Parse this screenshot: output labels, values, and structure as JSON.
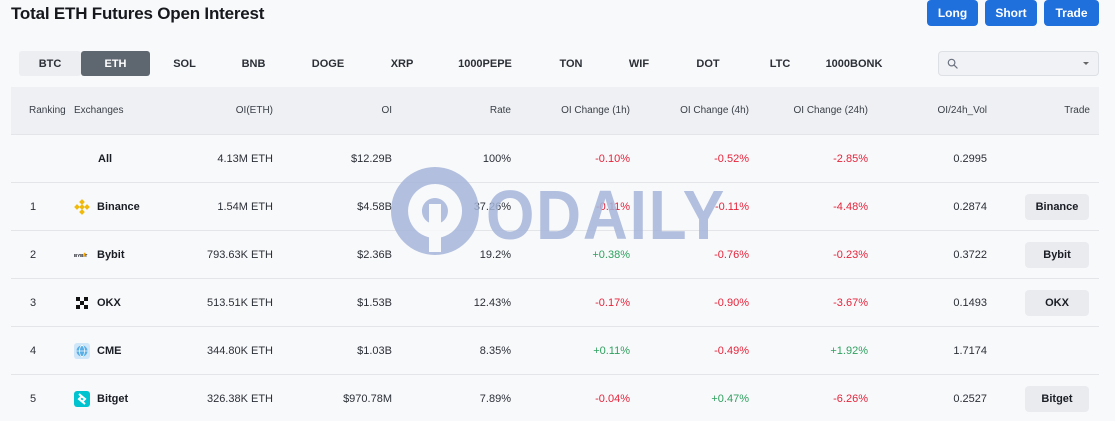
{
  "header": {
    "title": "Total ETH Futures Open Interest",
    "buttons": {
      "long": "Long",
      "short": "Short",
      "trade": "Trade"
    }
  },
  "tabs": [
    "BTC",
    "ETH",
    "SOL",
    "BNB",
    "DOGE",
    "XRP",
    "1000PEPE",
    "TON",
    "WIF",
    "DOT",
    "LTC",
    "1000BONK"
  ],
  "active_tab": "ETH",
  "search": {
    "placeholder": "",
    "value": ""
  },
  "table": {
    "columns": {
      "ranking": "Ranking",
      "exchanges": "Exchanges",
      "oi_eth": "OI(ETH)",
      "oi": "OI",
      "rate": "Rate",
      "oi_change_1h": "OI Change (1h)",
      "oi_change_4h": "OI Change (4h)",
      "oi_change_24h": "OI Change (24h)",
      "oi_vol": "OI/24h_Vol",
      "trade": "Trade"
    },
    "rows": [
      {
        "rank": "",
        "exchange": "All",
        "oi_eth": "4.13M ETH",
        "oi": "$12.29B",
        "rate": "100%",
        "ch1h": "-0.10%",
        "ch4h": "-0.52%",
        "ch24h": "-2.85%",
        "vol": "0.2995",
        "trade": ""
      },
      {
        "rank": "1",
        "exchange": "Binance",
        "oi_eth": "1.54M ETH",
        "oi": "$4.58B",
        "rate": "37.26%",
        "ch1h": "-0.11%",
        "ch4h": "-0.11%",
        "ch24h": "-4.48%",
        "vol": "0.2874",
        "trade": "Binance"
      },
      {
        "rank": "2",
        "exchange": "Bybit",
        "oi_eth": "793.63K ETH",
        "oi": "$2.36B",
        "rate": "19.2%",
        "ch1h": "+0.38%",
        "ch4h": "-0.76%",
        "ch24h": "-0.23%",
        "vol": "0.3722",
        "trade": "Bybit"
      },
      {
        "rank": "3",
        "exchange": "OKX",
        "oi_eth": "513.51K ETH",
        "oi": "$1.53B",
        "rate": "12.43%",
        "ch1h": "-0.17%",
        "ch4h": "-0.90%",
        "ch24h": "-3.67%",
        "vol": "0.1493",
        "trade": "OKX"
      },
      {
        "rank": "4",
        "exchange": "CME",
        "oi_eth": "344.80K ETH",
        "oi": "$1.03B",
        "rate": "8.35%",
        "ch1h": "+0.11%",
        "ch4h": "-0.49%",
        "ch24h": "+1.92%",
        "vol": "1.7174",
        "trade": ""
      },
      {
        "rank": "5",
        "exchange": "Bitget",
        "oi_eth": "326.38K ETH",
        "oi": "$970.78M",
        "rate": "7.89%",
        "ch1h": "-0.04%",
        "ch4h": "+0.47%",
        "ch24h": "-6.26%",
        "vol": "0.2527",
        "trade": "Bitget"
      }
    ]
  },
  "logo_text": {
    "bybit": "BYBIT"
  },
  "watermark": {
    "text": "ODAILY"
  },
  "colors": {
    "accent": "#1f6fdc",
    "positive": "#2fa05f",
    "negative": "#e5243b",
    "active_tab": "#5e6670",
    "binance": "#f0b90b",
    "bitget": "#00c3d0",
    "cme": "#5aaee6",
    "watermark": "#9fb0d8"
  }
}
